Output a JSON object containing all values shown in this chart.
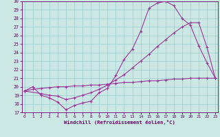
{
  "xlabel": "Windchill (Refroidissement éolien,°C)",
  "bg_color": "#cce8e4",
  "grid_color": "#99cccc",
  "line_color": "#993399",
  "xlim_min": 0,
  "xlim_max": 23,
  "ylim_min": 17,
  "ylim_max": 30,
  "xticks": [
    0,
    1,
    2,
    3,
    4,
    5,
    6,
    7,
    8,
    9,
    10,
    11,
    12,
    13,
    14,
    15,
    16,
    17,
    18,
    19,
    20,
    21,
    22,
    23
  ],
  "yticks": [
    17,
    18,
    19,
    20,
    21,
    22,
    23,
    24,
    25,
    26,
    27,
    28,
    29,
    30
  ],
  "line1_x": [
    0,
    1,
    2,
    3,
    4,
    5,
    6,
    7,
    8,
    9,
    10,
    11,
    12,
    13,
    14,
    15,
    16,
    17,
    18,
    19,
    20,
    21,
    22,
    23
  ],
  "line1_y": [
    19.5,
    20.0,
    19.0,
    18.7,
    18.2,
    17.3,
    17.8,
    18.1,
    18.3,
    19.3,
    19.8,
    21.3,
    23.2,
    24.4,
    26.5,
    29.2,
    29.8,
    30.0,
    29.5,
    28.0,
    27.2,
    24.8,
    22.8,
    21.0
  ],
  "line2_x": [
    0,
    2,
    3,
    4,
    5,
    6,
    7,
    8,
    9,
    10,
    11,
    12,
    13,
    14,
    15,
    16,
    17,
    18,
    19,
    20,
    21,
    22,
    23
  ],
  "line2_y": [
    19.5,
    19.2,
    19.0,
    18.9,
    18.5,
    18.7,
    19.0,
    19.3,
    19.7,
    20.2,
    20.8,
    21.4,
    22.2,
    23.0,
    23.8,
    24.7,
    25.5,
    26.3,
    27.0,
    27.5,
    27.5,
    24.6,
    21.0
  ],
  "line3_x": [
    0,
    1,
    2,
    3,
    4,
    5,
    6,
    7,
    8,
    9,
    10,
    11,
    12,
    13,
    14,
    15,
    16,
    17,
    18,
    19,
    20,
    21,
    22,
    23
  ],
  "line3_y": [
    19.5,
    19.7,
    19.8,
    19.9,
    20.0,
    20.0,
    20.1,
    20.1,
    20.2,
    20.2,
    20.3,
    20.4,
    20.5,
    20.5,
    20.6,
    20.7,
    20.7,
    20.8,
    20.9,
    20.9,
    21.0,
    21.0,
    21.0,
    21.0
  ]
}
